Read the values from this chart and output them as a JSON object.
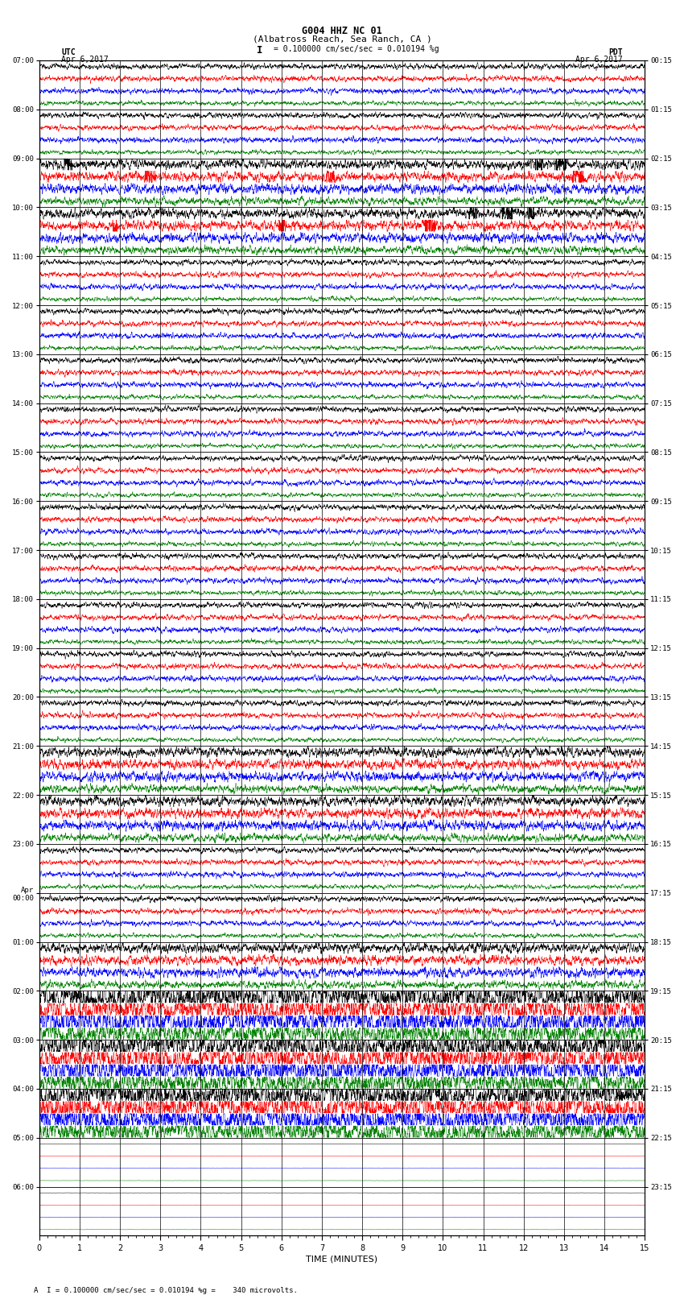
{
  "title_line1": "G004 HHZ NC 01",
  "title_line2": "(Albatross Reach, Sea Ranch, CA )",
  "scale_text": "= 0.100000 cm/sec/sec = 0.010194 %g",
  "footer_text": "A  I = 0.100000 cm/sec/sec = 0.010194 %g =    340 microvolts.",
  "left_label": "UTC",
  "left_date": "Apr 6,2017",
  "right_label": "PDT",
  "right_date": "Apr 6,2017",
  "xlabel": "TIME (MINUTES)",
  "x_ticks": [
    0,
    1,
    2,
    3,
    4,
    5,
    6,
    7,
    8,
    9,
    10,
    11,
    12,
    13,
    14,
    15
  ],
  "time_per_row_minutes": 15,
  "colors": [
    "black",
    "red",
    "blue",
    "green"
  ],
  "background_color": "white",
  "utc_times": [
    "07:00",
    "08:00",
    "09:00",
    "10:00",
    "11:00",
    "12:00",
    "13:00",
    "14:00",
    "15:00",
    "16:00",
    "17:00",
    "18:00",
    "19:00",
    "20:00",
    "21:00",
    "22:00",
    "23:00",
    "Apr\n00:00",
    "01:00",
    "02:00",
    "03:00",
    "04:00",
    "05:00",
    "06:00"
  ],
  "pdt_times": [
    "00:15",
    "01:15",
    "02:15",
    "03:15",
    "04:15",
    "05:15",
    "06:15",
    "07:15",
    "08:15",
    "09:15",
    "10:15",
    "11:15",
    "12:15",
    "13:15",
    "14:15",
    "15:15",
    "16:15",
    "17:15",
    "18:15",
    "19:15",
    "20:15",
    "21:15",
    "22:15",
    "23:15"
  ],
  "n_rows": 24,
  "channels_per_row": 4,
  "noise_seed": 42,
  "fig_width": 8.5,
  "fig_height": 16.13,
  "base_amps": [
    0.1,
    0.1,
    0.1,
    0.08
  ],
  "earthquake_rows": [
    19,
    20,
    21
  ],
  "quake_amp_scale": 5.0,
  "flat_rows": [
    22,
    23
  ],
  "flat_amp": 0.005
}
